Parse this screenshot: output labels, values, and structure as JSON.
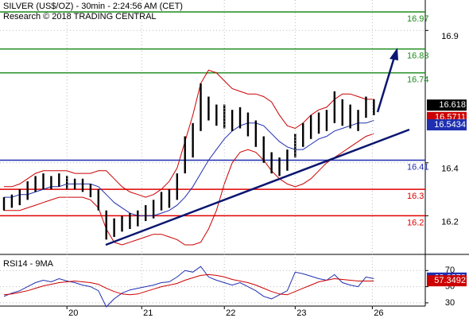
{
  "chart_data": [
    {
      "type": "ohlc",
      "title": "SILVER (US$/OZ) - 30min - 2:24:56 AM (CET)",
      "subtitle": "Research © 2018 TRADING CENTRAL",
      "xlim": [
        -0.505,
        53.53
      ],
      "ylim": [
        16.06,
        17.015
      ],
      "yticks": [
        16.2,
        16.4,
        16.9
      ],
      "grid": true,
      "color": "#000000",
      "high": [
        16.27,
        16.28,
        16.3,
        16.33,
        16.35,
        16.36,
        16.35,
        16.36,
        16.35,
        16.34,
        16.34,
        16.32,
        16.3,
        16.22,
        16.19,
        16.2,
        16.21,
        16.22,
        16.24,
        16.26,
        16.29,
        16.3,
        16.36,
        16.5,
        16.55,
        16.7,
        16.65,
        16.62,
        16.62,
        16.6,
        16.61,
        16.59,
        16.56,
        16.5,
        16.44,
        16.42,
        16.45,
        16.51,
        16.55,
        16.58,
        16.59,
        16.6,
        16.67,
        16.64,
        16.62,
        16.6,
        16.65,
        16.64
      ],
      "low": [
        16.22,
        16.23,
        16.24,
        16.26,
        16.29,
        16.3,
        16.3,
        16.31,
        16.3,
        16.3,
        16.29,
        16.27,
        16.22,
        16.11,
        16.12,
        16.14,
        16.15,
        16.16,
        16.18,
        16.19,
        16.22,
        16.23,
        16.26,
        16.36,
        16.42,
        16.52,
        16.56,
        16.54,
        16.53,
        16.52,
        16.53,
        16.5,
        16.46,
        16.4,
        16.36,
        16.35,
        16.37,
        16.42,
        16.46,
        16.49,
        16.51,
        16.52,
        16.55,
        16.54,
        16.53,
        16.52,
        16.57,
        16.58
      ],
      "series": [
        {
          "color": "#1f2fb0",
          "values": [
            16.27,
            16.27,
            16.28,
            16.28,
            16.29,
            16.3,
            16.31,
            16.31,
            16.32,
            16.32,
            16.32,
            16.32,
            16.31,
            16.28,
            16.25,
            16.23,
            16.21,
            16.2,
            16.2,
            16.2,
            16.21,
            16.22,
            16.24,
            16.27,
            16.31,
            16.36,
            16.41,
            16.45,
            16.49,
            16.52,
            16.54,
            16.55,
            16.55,
            16.54,
            16.51,
            16.48,
            16.46,
            16.45,
            16.45,
            16.47,
            16.49,
            16.5,
            16.52,
            16.53,
            16.54,
            16.55,
            16.55,
            16.56
          ]
        },
        {
          "color": "#cc0000",
          "values": [
            16.31,
            16.31,
            16.32,
            16.34,
            16.36,
            16.37,
            16.37,
            16.37,
            16.37,
            16.36,
            16.36,
            16.36,
            16.37,
            16.37,
            16.34,
            16.31,
            16.29,
            16.28,
            16.27,
            16.28,
            16.3,
            16.33,
            16.38,
            16.48,
            16.58,
            16.7,
            16.75,
            16.74,
            16.71,
            16.68,
            16.67,
            16.66,
            16.66,
            16.65,
            16.63,
            16.58,
            16.54,
            16.53,
            16.55,
            16.58,
            16.6,
            16.61,
            16.64,
            16.66,
            16.66,
            16.65,
            16.64,
            16.64
          ]
        },
        {
          "color": "#cc0000",
          "values": [
            16.22,
            16.22,
            16.22,
            16.23,
            16.24,
            16.25,
            16.26,
            16.27,
            16.27,
            16.27,
            16.27,
            16.26,
            16.23,
            16.15,
            16.1,
            16.09,
            16.1,
            16.11,
            16.12,
            16.13,
            16.13,
            16.12,
            16.11,
            16.09,
            16.09,
            16.1,
            16.15,
            16.22,
            16.32,
            16.4,
            16.44,
            16.45,
            16.44,
            16.41,
            16.37,
            16.34,
            16.32,
            16.31,
            16.32,
            16.34,
            16.37,
            16.4,
            16.42,
            16.44,
            16.46,
            16.48,
            16.5,
            16.51
          ]
        }
      ],
      "levels": [
        {
          "value": 16.97,
          "color": "#1e8c1e"
        },
        {
          "value": 16.83,
          "color": "#1e8c1e"
        },
        {
          "value": 16.74,
          "color": "#1e8c1e"
        },
        {
          "value": 16.41,
          "color": "#1f2fb0"
        },
        {
          "value": 16.3,
          "color": "#e00000"
        },
        {
          "value": 16.2,
          "color": "#e00000"
        }
      ],
      "last_labels": [
        {
          "value": 16.618,
          "color": "#000000"
        },
        {
          "value": 16.5711,
          "color": "#cc0000"
        },
        {
          "value": 16.5434,
          "color": "#1f2fb0"
        }
      ]
    },
    {
      "type": "line",
      "title": "RSI14 - 9MA",
      "xlim": [
        -0.505,
        53.53
      ],
      "xticks": [
        {
          "value": 8,
          "label": "20"
        },
        {
          "value": 17.5,
          "label": "21"
        },
        {
          "value": 28,
          "label": "22"
        },
        {
          "value": 37,
          "label": "23"
        },
        {
          "value": 46.8,
          "label": "26"
        }
      ],
      "ylim": [
        26,
        88
      ],
      "yticks": [
        30,
        50,
        70
      ],
      "series": [
        {
          "color": "#1f2fb0",
          "values": [
            38,
            42,
            45,
            50,
            55,
            58,
            56,
            60,
            57,
            55,
            52,
            50,
            45,
            25,
            35,
            42,
            46,
            48,
            50,
            52,
            55,
            56,
            62,
            70,
            68,
            75,
            62,
            58,
            55,
            52,
            55,
            50,
            45,
            38,
            35,
            40,
            45,
            68,
            66,
            63,
            60,
            58,
            65,
            55,
            52,
            50,
            62,
            60
          ]
        },
        {
          "color": "#cc0000",
          "values": [
            40,
            41,
            43,
            45,
            48,
            51,
            53,
            55,
            56,
            57,
            56,
            55,
            53,
            48,
            44,
            41,
            40,
            41,
            44,
            47,
            50,
            52,
            54,
            58,
            61,
            64,
            65,
            64,
            62,
            59,
            57,
            55,
            52,
            48,
            44,
            41,
            40,
            44,
            48,
            52,
            56,
            58,
            60,
            59,
            58,
            57,
            57,
            57
          ]
        }
      ],
      "last_labels": [
        {
          "value": 60.6379,
          "color": "#1f2fb0"
        },
        {
          "value": 57.3492,
          "color": "#cc0000"
        }
      ]
    }
  ]
}
